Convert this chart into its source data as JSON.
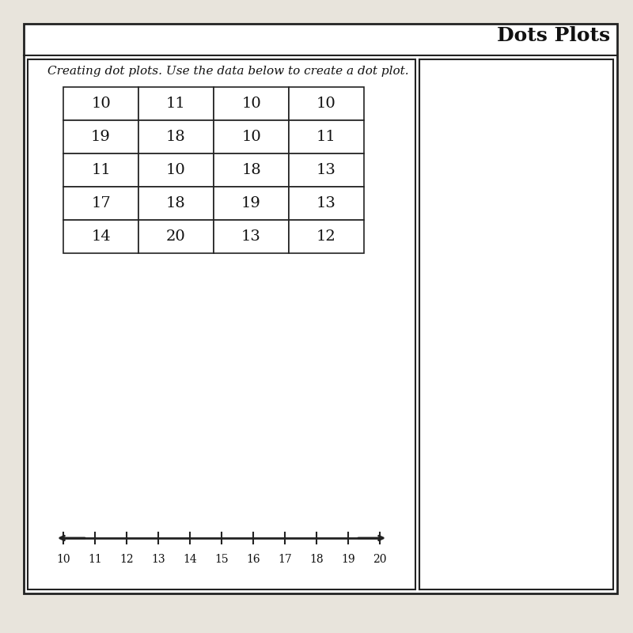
{
  "title": "Dots Plots",
  "instruction": "Creating dot plots. Use the data below to create a dot plot.",
  "table_data": [
    [
      10,
      11,
      10,
      10
    ],
    [
      19,
      18,
      10,
      11
    ],
    [
      11,
      10,
      18,
      13
    ],
    [
      17,
      18,
      19,
      13
    ],
    [
      14,
      20,
      13,
      12
    ]
  ],
  "number_line_min": 10,
  "number_line_max": 20,
  "bg_color": "#e8e4dc",
  "table_bg": "#f0ede6",
  "border_color": "#222222",
  "text_color": "#111111",
  "title_fontsize": 18,
  "instruction_fontsize": 11,
  "table_fontsize": 14,
  "axis_fontsize": 12
}
